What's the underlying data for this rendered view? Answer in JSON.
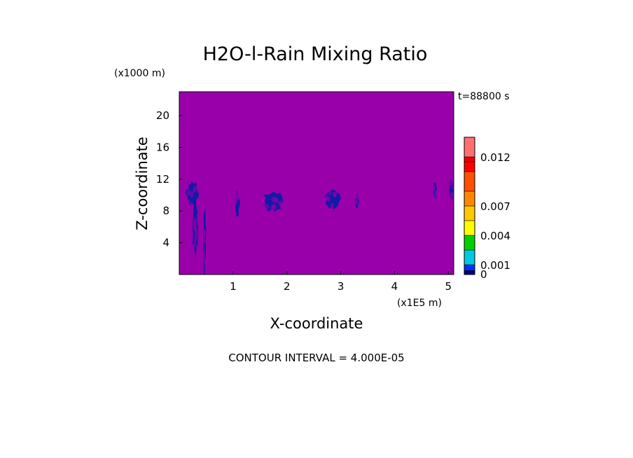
{
  "chart_data": {
    "type": "heatmap",
    "title": "H2O-l-Rain Mixing Ratio",
    "xlabel": "X-coordinate",
    "ylabel": "Z-coordinate",
    "x_units": "(x1E5 m)",
    "y_units": "(x1000 m)",
    "time_label": "t=88800 s",
    "footer": "CONTOUR INTERVAL = 4.000E-05",
    "xlim": [
      0,
      5.1
    ],
    "ylim": [
      0,
      23
    ],
    "xticks": [
      "1",
      "2",
      "3",
      "4",
      "5"
    ],
    "yticks": [
      "4",
      "8",
      "12",
      "16",
      "20"
    ],
    "background_color": "#9900aa",
    "feature_color": "#0a1aa8",
    "colorbar": {
      "levels": [
        0,
        0.0004,
        0.001,
        0.0025,
        0.004,
        0.0055,
        0.007,
        0.0085,
        0.0105,
        0.0115,
        0.012,
        0.014
      ],
      "colors": [
        "#000080",
        "#0030ff",
        "#00c8e0",
        "#00d000",
        "#ffff00",
        "#ffc800",
        "#ff8800",
        "#ff5000",
        "#ff0000",
        "#ee0000",
        "#ff7070",
        "#ffc0c0"
      ],
      "tick_labels": [
        "0",
        "0.001",
        "0.004",
        "0.007",
        "0.012"
      ]
    },
    "features": [
      {
        "x": 0.25,
        "z": 10.2,
        "w": 0.26,
        "h": 3.4
      },
      {
        "x": 0.3,
        "z": 6.0,
        "w": 0.12,
        "h": 8.0
      },
      {
        "x": 0.47,
        "z": 4.5,
        "w": 0.06,
        "h": 9.0
      },
      {
        "x": 1.08,
        "z": 8.9,
        "w": 0.1,
        "h": 3.4
      },
      {
        "x": 1.75,
        "z": 9.3,
        "w": 0.42,
        "h": 2.8
      },
      {
        "x": 2.85,
        "z": 9.5,
        "w": 0.3,
        "h": 2.4
      },
      {
        "x": 3.3,
        "z": 9.2,
        "w": 0.08,
        "h": 2.0
      },
      {
        "x": 4.75,
        "z": 10.5,
        "w": 0.09,
        "h": 2.2
      },
      {
        "x": 5.05,
        "z": 10.8,
        "w": 0.09,
        "h": 2.8
      }
    ]
  }
}
